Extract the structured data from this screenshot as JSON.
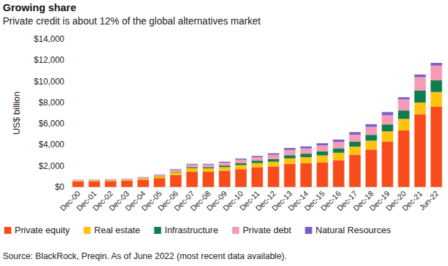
{
  "chart_data": {
    "type": "bar",
    "stacked": true,
    "title": "Growing share",
    "subtitle": "Private credit is about 12% of the global alternatives market",
    "y_label": "US$ billion",
    "source": "Source: BlackRock, Preqin. As of June 2022 (most recent data available).",
    "categories": [
      "Dec-00",
      "Dec-01",
      "Dec-02",
      "Dec-03",
      "Dec-04",
      "Dec-05",
      "Dec-06",
      "Dec-07",
      "Dec-08",
      "Dec-09",
      "Dec-10",
      "Dec-11",
      "Dec-12",
      "Dec-13",
      "Dec-14",
      "Dec-15",
      "Dec-16",
      "Dec-17",
      "Dec-18",
      "Dec-19",
      "Dec-20",
      "Dec-21",
      "Jun-22"
    ],
    "series": [
      {
        "name": "Private equity",
        "color": "#f94c1c",
        "values": [
          550,
          560,
          570,
          620,
          700,
          850,
          1150,
          1450,
          1450,
          1550,
          1700,
          1850,
          1950,
          2200,
          2250,
          2350,
          2550,
          3050,
          3550,
          4300,
          5350,
          6900,
          7600
        ]
      },
      {
        "name": "Real estate",
        "color": "#ffc20e",
        "values": [
          60,
          70,
          70,
          80,
          120,
          180,
          260,
          340,
          320,
          340,
          380,
          420,
          450,
          520,
          580,
          650,
          700,
          780,
          850,
          980,
          1100,
          1100,
          1400
        ]
      },
      {
        "name": "Infrastructure",
        "color": "#0f7d4f",
        "values": [
          10,
          10,
          10,
          10,
          20,
          30,
          60,
          100,
          120,
          150,
          200,
          230,
          260,
          300,
          330,
          380,
          420,
          470,
          540,
          650,
          800,
          1150,
          1100
        ]
      },
      {
        "name": "Private debt",
        "color": "#f59bb5",
        "values": [
          60,
          60,
          70,
          70,
          90,
          110,
          180,
          240,
          240,
          270,
          320,
          340,
          400,
          500,
          500,
          560,
          600,
          660,
          760,
          880,
          1050,
          1250,
          1400
        ]
      },
      {
        "name": "Natural Resources",
        "color": "#7b5cc9",
        "values": [
          20,
          20,
          20,
          20,
          20,
          30,
          50,
          70,
          70,
          90,
          100,
          110,
          140,
          180,
          190,
          210,
          230,
          240,
          250,
          290,
          200,
          250,
          250
        ]
      }
    ],
    "ylim": [
      0,
      14000
    ],
    "yticks": [
      {
        "value": 0,
        "label": "$0"
      },
      {
        "value": 2000,
        "label": "$2,000"
      },
      {
        "value": 4000,
        "label": "$4,000"
      },
      {
        "value": 6000,
        "label": "$6,000"
      },
      {
        "value": 8000,
        "label": "$8,000"
      },
      {
        "value": 10000,
        "label": "$10,000"
      },
      {
        "value": 12000,
        "label": "$12,000"
      },
      {
        "value": 14000,
        "label": "$14,000"
      }
    ],
    "grid": false,
    "legend": "bottom"
  }
}
